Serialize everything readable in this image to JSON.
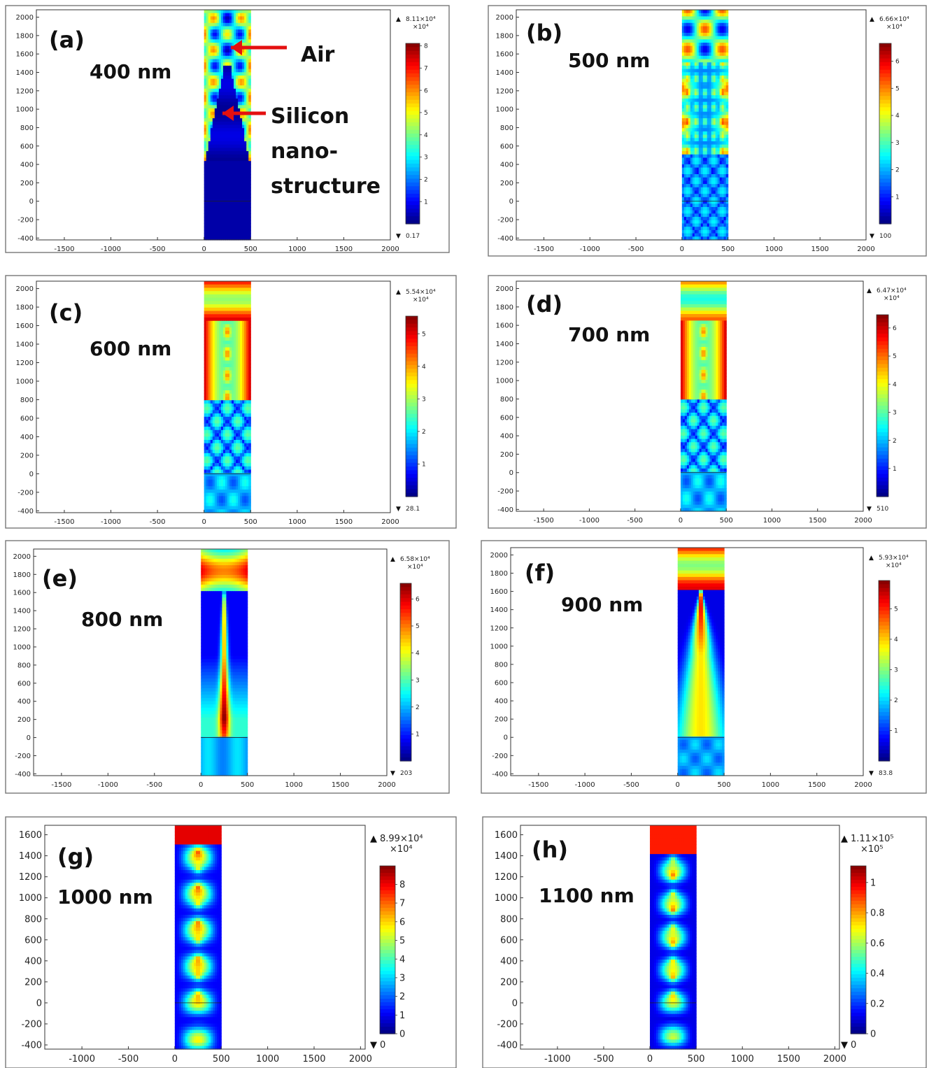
{
  "chart_data": [
    {
      "type": "heatmap",
      "panel_label": "(a)",
      "wavelength_label": "400 nm",
      "annotations": {
        "air": "Air",
        "silicon_line1": "Silicon",
        "silicon_line2": "nano-",
        "silicon_line3": "structure"
      },
      "x_ticks": [
        "-1500",
        "-1000",
        "-500",
        "0",
        "500",
        "1000",
        "1500",
        "2000"
      ],
      "y_ticks": [
        "-400",
        "-200",
        "0",
        "200",
        "400",
        "600",
        "800",
        "1000",
        "1200",
        "1400",
        "1600",
        "1800",
        "2000"
      ],
      "xlim": [
        -1800,
        2000
      ],
      "ylim": [
        -420,
        2080
      ],
      "structure_x": [
        0,
        500
      ],
      "colorbar": {
        "max_label": "8.11×10⁴",
        "multiplier": "×10⁴",
        "min_label": "0.17",
        "ticks": [
          "1",
          "2",
          "3",
          "4",
          "5",
          "6",
          "7",
          "8"
        ],
        "tick_values": [
          1,
          2,
          3,
          4,
          5,
          6,
          7,
          8
        ],
        "range": [
          0,
          8.11
        ]
      },
      "pattern": "a"
    },
    {
      "type": "heatmap",
      "panel_label": "(b)",
      "wavelength_label": "500 nm",
      "x_ticks": [
        "-1500",
        "-1000",
        "-500",
        "0",
        "500",
        "1000",
        "1500",
        "2000"
      ],
      "y_ticks": [
        "-400",
        "-200",
        "0",
        "200",
        "400",
        "600",
        "800",
        "1000",
        "1200",
        "1400",
        "1600",
        "1800",
        "2000"
      ],
      "xlim": [
        -1800,
        2000
      ],
      "ylim": [
        -420,
        2080
      ],
      "structure_x": [
        0,
        500
      ],
      "colorbar": {
        "max_label": "6.66×10⁴",
        "multiplier": "×10⁴",
        "min_label": "100",
        "ticks": [
          "1",
          "2",
          "3",
          "4",
          "5",
          "6"
        ],
        "tick_values": [
          1,
          2,
          3,
          4,
          5,
          6
        ],
        "range": [
          0,
          6.66
        ]
      },
      "pattern": "b"
    },
    {
      "type": "heatmap",
      "panel_label": "(c)",
      "wavelength_label": "600 nm",
      "x_ticks": [
        "-1500",
        "-1000",
        "-500",
        "0",
        "500",
        "1000",
        "1500",
        "2000"
      ],
      "y_ticks": [
        "-400",
        "-200",
        "0",
        "200",
        "400",
        "600",
        "800",
        "1000",
        "1200",
        "1400",
        "1600",
        "1800",
        "2000"
      ],
      "xlim": [
        -1800,
        2000
      ],
      "ylim": [
        -420,
        2080
      ],
      "structure_x": [
        0,
        500
      ],
      "colorbar": {
        "max_label": "5.54×10⁴",
        "multiplier": "×10⁴",
        "min_label": "28.1",
        "ticks": [
          "1",
          "2",
          "3",
          "4",
          "5"
        ],
        "tick_values": [
          1,
          2,
          3,
          4,
          5
        ],
        "range": [
          0,
          5.54
        ]
      },
      "pattern": "c"
    },
    {
      "type": "heatmap",
      "panel_label": "(d)",
      "wavelength_label": "700 nm",
      "x_ticks": [
        "-1500",
        "-1000",
        "-500",
        "0",
        "500",
        "1000",
        "1500",
        "2000"
      ],
      "y_ticks": [
        "-400",
        "-200",
        "0",
        "200",
        "400",
        "600",
        "800",
        "1000",
        "1200",
        "1400",
        "1600",
        "1800",
        "2000"
      ],
      "xlim": [
        -1800,
        2000
      ],
      "ylim": [
        -420,
        2080
      ],
      "structure_x": [
        0,
        500
      ],
      "colorbar": {
        "max_label": "6.47×10⁴",
        "multiplier": "×10⁴",
        "min_label": "510",
        "ticks": [
          "1",
          "2",
          "3",
          "4",
          "5",
          "6"
        ],
        "tick_values": [
          1,
          2,
          3,
          4,
          5,
          6
        ],
        "range": [
          0,
          6.47
        ]
      },
      "pattern": "d"
    },
    {
      "type": "heatmap",
      "panel_label": "(e)",
      "wavelength_label": "800 nm",
      "x_ticks": [
        "-1500",
        "-1000",
        "-500",
        "0",
        "500",
        "1000",
        "1500",
        "2000"
      ],
      "y_ticks": [
        "-400",
        "-200",
        "0",
        "200",
        "400",
        "600",
        "800",
        "1000",
        "1200",
        "1400",
        "1600",
        "1800",
        "2000"
      ],
      "xlim": [
        -1800,
        2000
      ],
      "ylim": [
        -420,
        2080
      ],
      "structure_x": [
        0,
        500
      ],
      "colorbar": {
        "max_label": "6.58×10⁴",
        "multiplier": "×10⁴",
        "min_label": "203",
        "ticks": [
          "1",
          "2",
          "3",
          "4",
          "5",
          "6"
        ],
        "tick_values": [
          1,
          2,
          3,
          4,
          5,
          6
        ],
        "range": [
          0,
          6.58
        ]
      },
      "pattern": "e"
    },
    {
      "type": "heatmap",
      "panel_label": "(f)",
      "wavelength_label": "900 nm",
      "x_ticks": [
        "-1500",
        "-1000",
        "-500",
        "0",
        "500",
        "1000",
        "1500",
        "2000"
      ],
      "y_ticks": [
        "-400",
        "-200",
        "0",
        "200",
        "400",
        "600",
        "800",
        "1000",
        "1200",
        "1400",
        "1600",
        "1800",
        "2000"
      ],
      "xlim": [
        -1800,
        2000
      ],
      "ylim": [
        -420,
        2080
      ],
      "structure_x": [
        0,
        500
      ],
      "colorbar": {
        "max_label": "5.93×10⁴",
        "multiplier": "×10⁴",
        "min_label": "83.8",
        "ticks": [
          "1",
          "2",
          "3",
          "4",
          "5"
        ],
        "tick_values": [
          1,
          2,
          3,
          4,
          5
        ],
        "range": [
          0,
          5.93
        ]
      },
      "pattern": "f"
    },
    {
      "type": "heatmap",
      "panel_label": "(g)",
      "wavelength_label": "1000 nm",
      "x_ticks": [
        "-1000",
        "-500",
        "0",
        "500",
        "1000",
        "1500",
        "2000"
      ],
      "y_ticks": [
        "-400",
        "-200",
        "0",
        "200",
        "400",
        "600",
        "800",
        "1000",
        "1200",
        "1400",
        "1600"
      ],
      "xlim": [
        -1400,
        2050
      ],
      "ylim": [
        -440,
        1690
      ],
      "structure_x": [
        0,
        500
      ],
      "colorbar": {
        "max_label": "8.99×10⁴",
        "multiplier": "×10⁴",
        "min_label": "0",
        "ticks": [
          "0",
          "1",
          "2",
          "3",
          "4",
          "5",
          "6",
          "7",
          "8"
        ],
        "tick_values": [
          0,
          1,
          2,
          3,
          4,
          5,
          6,
          7,
          8
        ],
        "range": [
          0,
          8.99
        ]
      },
      "pattern": "g"
    },
    {
      "type": "heatmap",
      "panel_label": "(h)",
      "wavelength_label": "1100 nm",
      "x_ticks": [
        "-1000",
        "-500",
        "0",
        "500",
        "1000",
        "1500",
        "2000"
      ],
      "y_ticks": [
        "-400",
        "-200",
        "0",
        "200",
        "400",
        "600",
        "800",
        "1000",
        "1200",
        "1400",
        "1600"
      ],
      "xlim": [
        -1400,
        2050
      ],
      "ylim": [
        -440,
        1690
      ],
      "structure_x": [
        0,
        500
      ],
      "colorbar": {
        "max_label": "1.11×10⁵",
        "multiplier": "×10⁵",
        "min_label": "0",
        "ticks": [
          "0",
          "0.2",
          "0.4",
          "0.6",
          "0.8",
          "1"
        ],
        "tick_values": [
          0,
          0.2,
          0.4,
          0.6,
          0.8,
          1
        ],
        "range": [
          0,
          1.11
        ]
      },
      "pattern": "h"
    }
  ]
}
